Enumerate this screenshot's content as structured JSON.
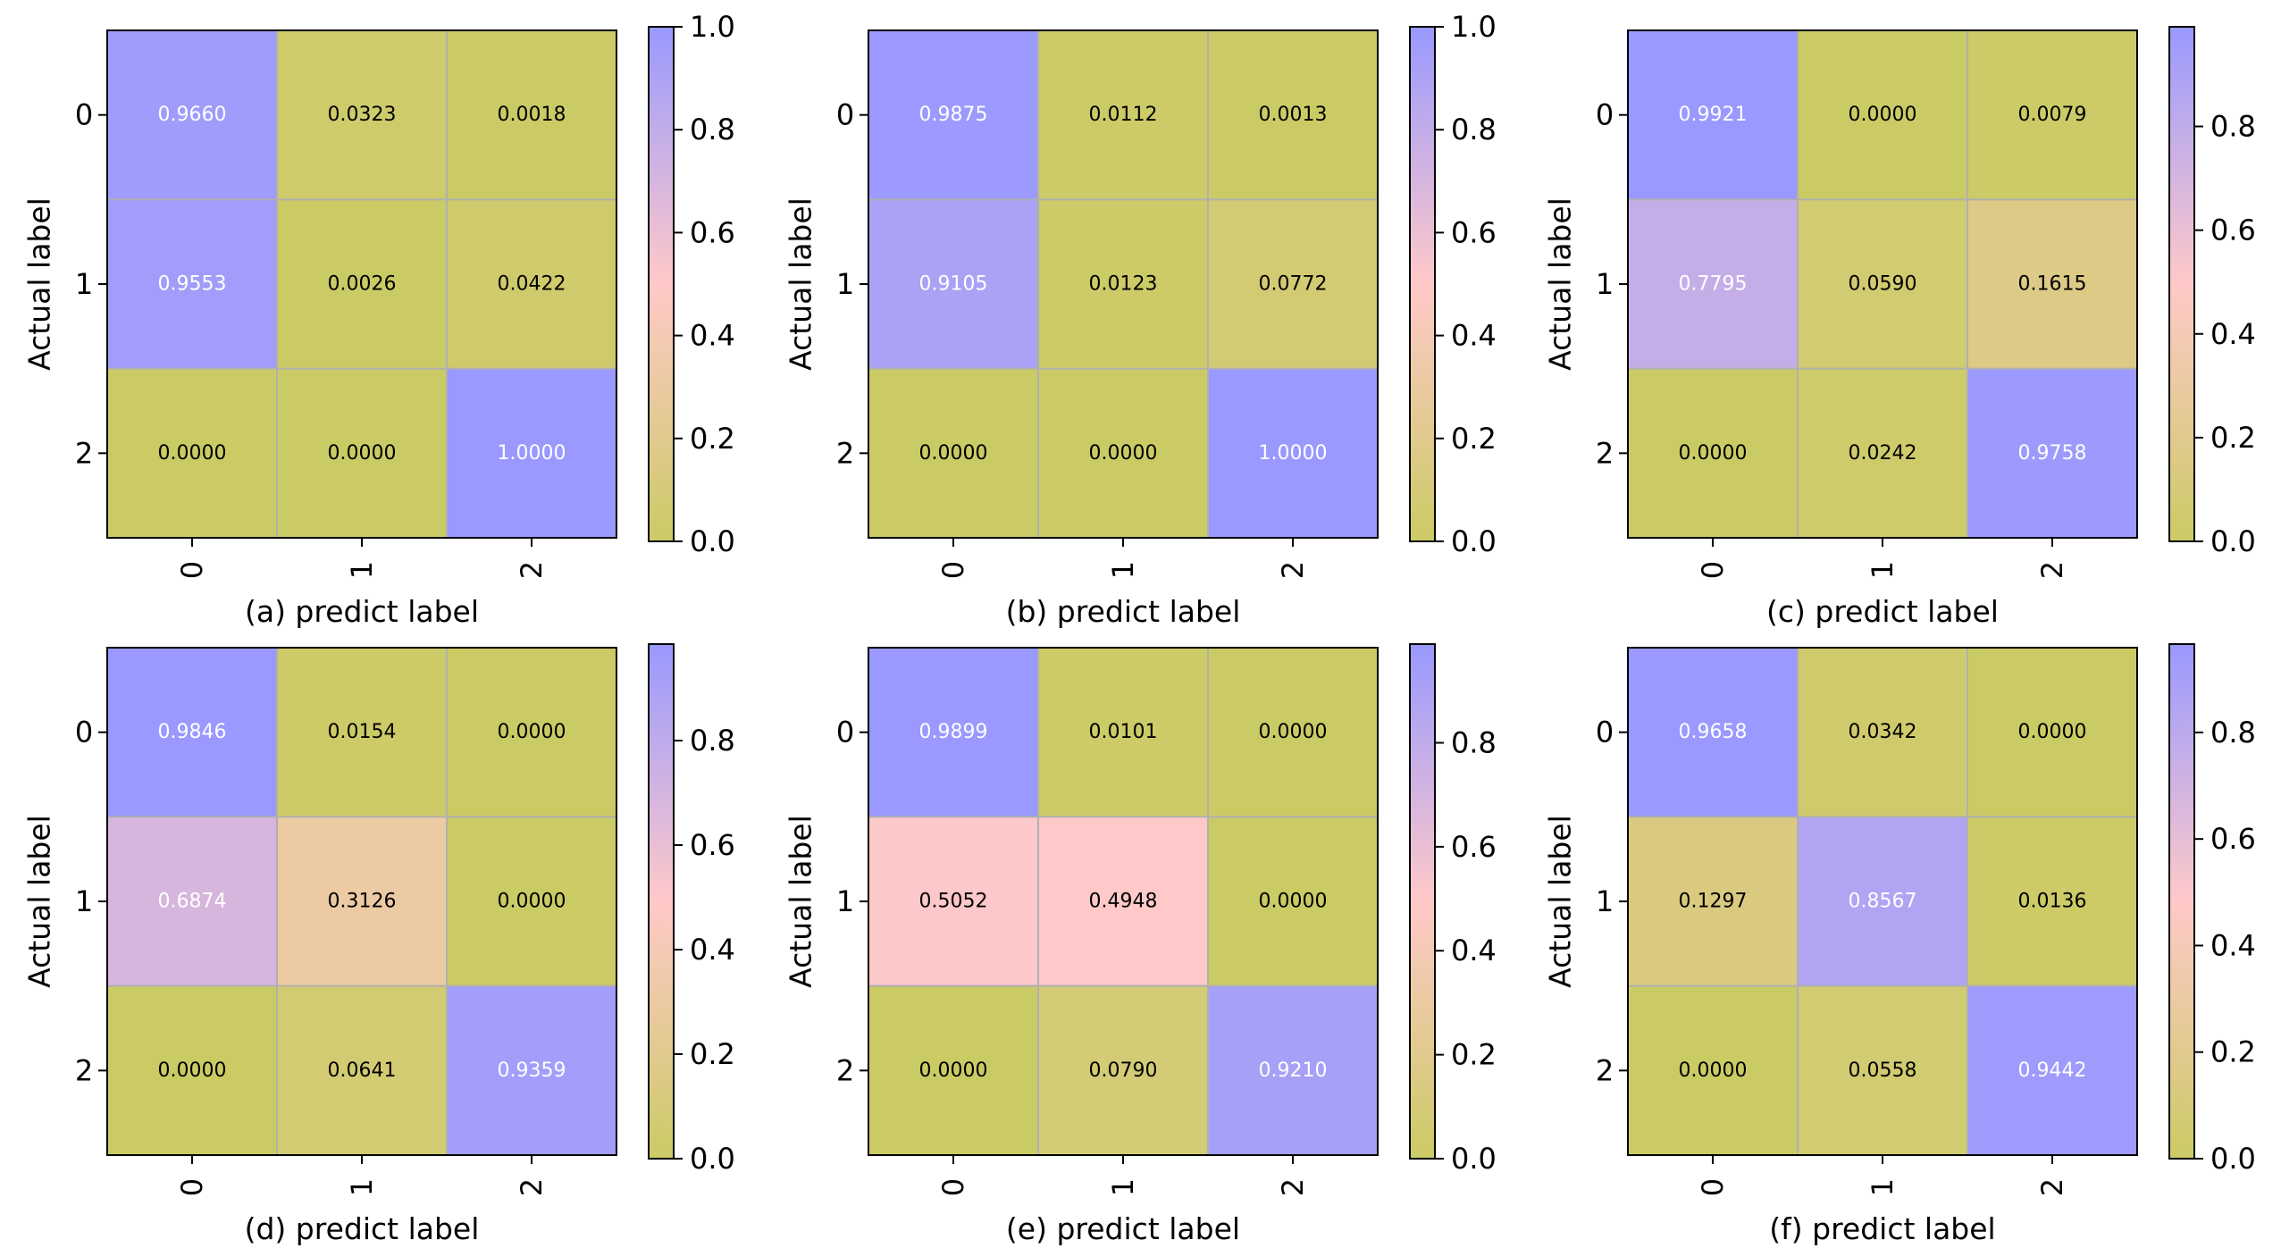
{
  "chart_data": [
    {
      "type": "heatmap",
      "xlabel": "(a) predict label",
      "ylabel": "Actual label",
      "x_tick_labels": [
        "0",
        "1",
        "2"
      ],
      "y_tick_labels": [
        "0",
        "1",
        "2"
      ],
      "values": [
        [
          0.966,
          0.0323,
          0.0018
        ],
        [
          0.9553,
          0.0026,
          0.0422
        ],
        [
          0.0,
          0.0,
          1.0
        ]
      ],
      "cell_labels": [
        [
          "0.9660",
          "0.0323",
          "0.0018"
        ],
        [
          "0.9553",
          "0.0026",
          "0.0422"
        ],
        [
          "0.0000",
          "0.0000",
          "1.0000"
        ]
      ],
      "colorbar_range": [
        0.0,
        1.0
      ],
      "colorbar_ticks": [
        "0.0",
        "0.2",
        "0.4",
        "0.6",
        "0.8",
        "1.0"
      ]
    },
    {
      "type": "heatmap",
      "xlabel": "(b) predict label",
      "ylabel": "Actual label",
      "x_tick_labels": [
        "0",
        "1",
        "2"
      ],
      "y_tick_labels": [
        "0",
        "1",
        "2"
      ],
      "values": [
        [
          0.9875,
          0.0112,
          0.0013
        ],
        [
          0.9105,
          0.0123,
          0.0772
        ],
        [
          0.0,
          0.0,
          1.0
        ]
      ],
      "cell_labels": [
        [
          "0.9875",
          "0.0112",
          "0.0013"
        ],
        [
          "0.9105",
          "0.0123",
          "0.0772"
        ],
        [
          "0.0000",
          "0.0000",
          "1.0000"
        ]
      ],
      "colorbar_range": [
        0.0,
        1.0
      ],
      "colorbar_ticks": [
        "0.0",
        "0.2",
        "0.4",
        "0.6",
        "0.8",
        "1.0"
      ]
    },
    {
      "type": "heatmap",
      "xlabel": "(c) predict label",
      "ylabel": "Actual label",
      "x_tick_labels": [
        "0",
        "1",
        "2"
      ],
      "y_tick_labels": [
        "0",
        "1",
        "2"
      ],
      "values": [
        [
          0.9921,
          0.0,
          0.0079
        ],
        [
          0.7795,
          0.059,
          0.1615
        ],
        [
          0.0,
          0.0242,
          0.9758
        ]
      ],
      "cell_labels": [
        [
          "0.9921",
          "0.0000",
          "0.0079"
        ],
        [
          "0.7795",
          "0.0590",
          "0.1615"
        ],
        [
          "0.0000",
          "0.0242",
          "0.9758"
        ]
      ],
      "colorbar_range": [
        0.0,
        0.9921
      ],
      "colorbar_ticks": [
        "0.0",
        "0.2",
        "0.4",
        "0.6",
        "0.8"
      ]
    },
    {
      "type": "heatmap",
      "xlabel": "(d) predict label",
      "ylabel": "Actual label",
      "x_tick_labels": [
        "0",
        "1",
        "2"
      ],
      "y_tick_labels": [
        "0",
        "1",
        "2"
      ],
      "values": [
        [
          0.9846,
          0.0154,
          0.0
        ],
        [
          0.6874,
          0.3126,
          0.0
        ],
        [
          0.0,
          0.0641,
          0.9359
        ]
      ],
      "cell_labels": [
        [
          "0.9846",
          "0.0154",
          "0.0000"
        ],
        [
          "0.6874",
          "0.3126",
          "0.0000"
        ],
        [
          "0.0000",
          "0.0641",
          "0.9359"
        ]
      ],
      "colorbar_range": [
        0.0,
        0.9846
      ],
      "colorbar_ticks": [
        "0.0",
        "0.2",
        "0.4",
        "0.6",
        "0.8"
      ]
    },
    {
      "type": "heatmap",
      "xlabel": "(e) predict label",
      "ylabel": "Actual label",
      "x_tick_labels": [
        "0",
        "1",
        "2"
      ],
      "y_tick_labels": [
        "0",
        "1",
        "2"
      ],
      "values": [
        [
          0.9899,
          0.0101,
          0.0
        ],
        [
          0.5052,
          0.4948,
          0.0
        ],
        [
          0.0,
          0.079,
          0.921
        ]
      ],
      "cell_labels": [
        [
          "0.9899",
          "0.0101",
          "0.0000"
        ],
        [
          "0.5052",
          "0.4948",
          "0.0000"
        ],
        [
          "0.0000",
          "0.0790",
          "0.9210"
        ]
      ],
      "colorbar_range": [
        0.0,
        0.9899
      ],
      "colorbar_ticks": [
        "0.0",
        "0.2",
        "0.4",
        "0.6",
        "0.8"
      ]
    },
    {
      "type": "heatmap",
      "xlabel": "(f) predict label",
      "ylabel": "Actual label",
      "x_tick_labels": [
        "0",
        "1",
        "2"
      ],
      "y_tick_labels": [
        "0",
        "1",
        "2"
      ],
      "values": [
        [
          0.9658,
          0.0342,
          0.0
        ],
        [
          0.1297,
          0.8567,
          0.0136
        ],
        [
          0.0,
          0.0558,
          0.9442
        ]
      ],
      "cell_labels": [
        [
          "0.9658",
          "0.0342",
          "0.0000"
        ],
        [
          "0.1297",
          "0.8567",
          "0.0136"
        ],
        [
          "0.0000",
          "0.0558",
          "0.9442"
        ]
      ],
      "colorbar_range": [
        0.0,
        0.9658
      ],
      "colorbar_ticks": [
        "0.0",
        "0.2",
        "0.4",
        "0.6",
        "0.8"
      ]
    }
  ],
  "colormap": {
    "low": "#cbcb65",
    "mid": "#ffc9c9",
    "high": "#9999ff"
  },
  "text_colors": {
    "dark_cell": "#000000",
    "light_cell": "#ffffff"
  }
}
